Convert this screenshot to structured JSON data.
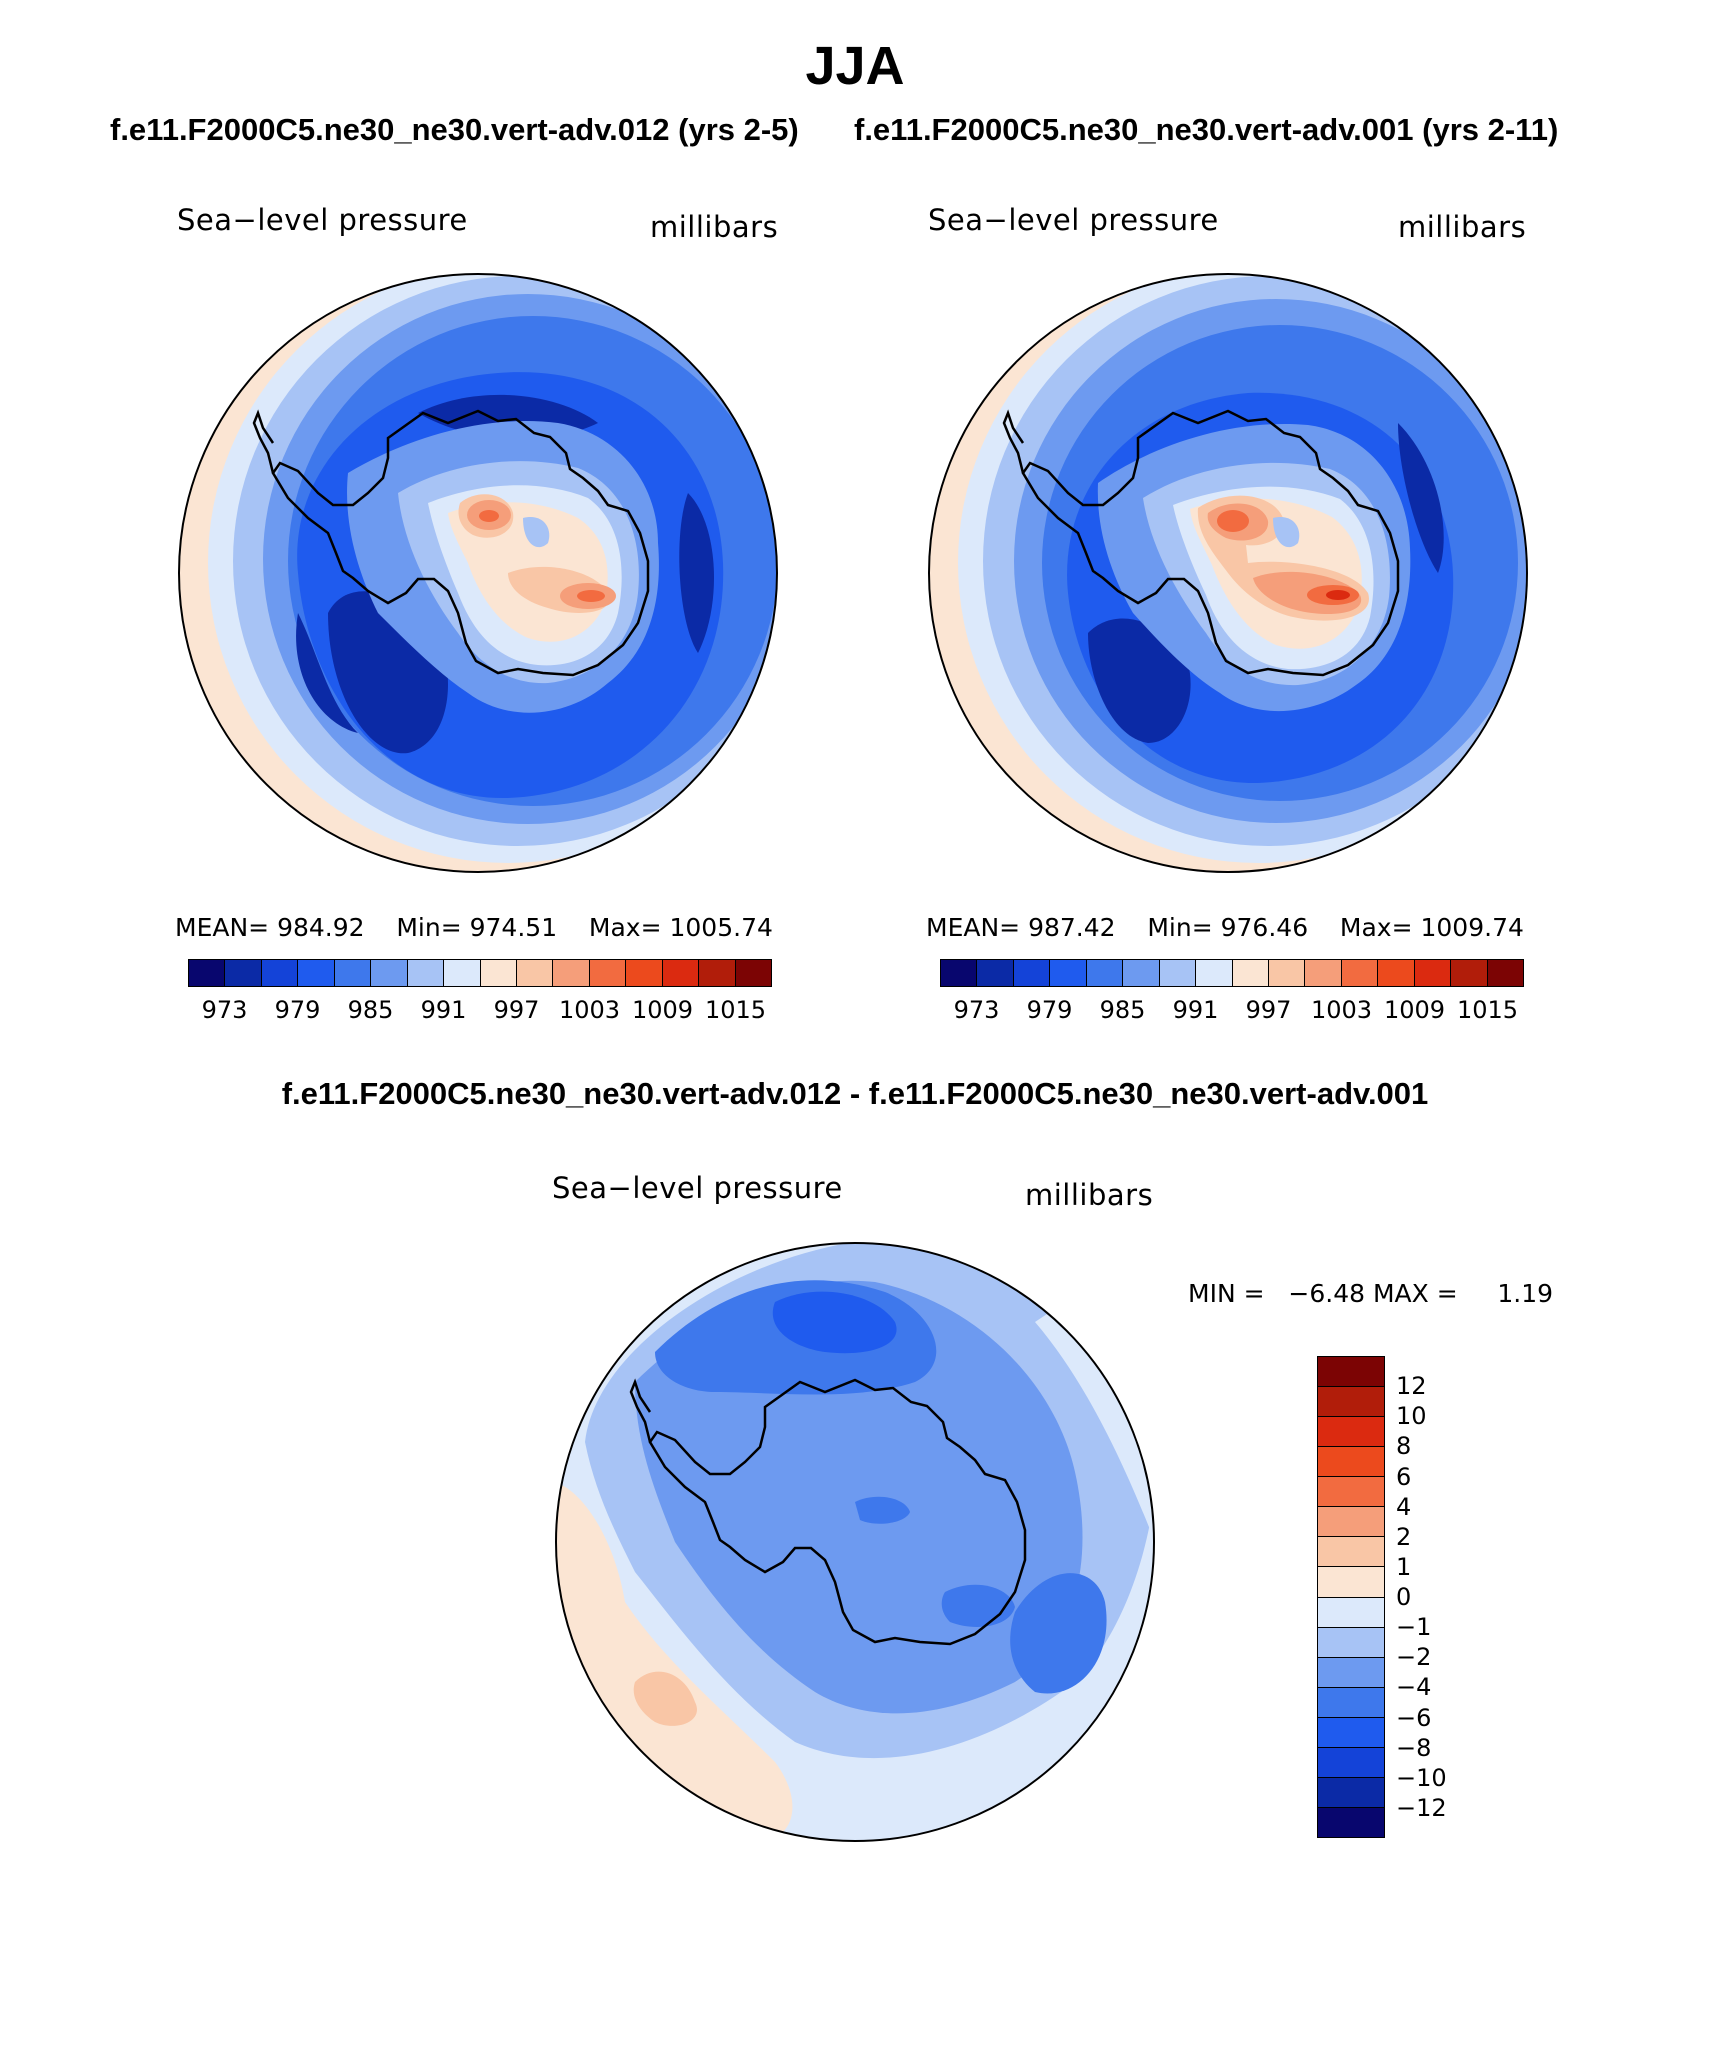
{
  "title": "JJA",
  "case1_title": "f.e11.F2000C5.ne30_ne30.vert-adv.012 (yrs 2-5)",
  "case2_title": "f.e11.F2000C5.ne30_ne30.vert-adv.001 (yrs 2-11)",
  "diff_title": "f.e11.F2000C5.ne30_ne30.vert-adv.012 - f.e11.F2000C5.ne30_ne30.vert-adv.001",
  "panels": {
    "left": {
      "variable": "Sea−level pressure",
      "units": "millibars",
      "mean_label": "MEAN=",
      "mean": "984.92",
      "min_label": "Min=",
      "min": "974.51",
      "max_label": "Max=",
      "max": "1005.74"
    },
    "right": {
      "variable": "Sea−level pressure",
      "units": "millibars",
      "mean_label": "MEAN=",
      "mean": "987.42",
      "min_label": "Min=",
      "min": "976.46",
      "max_label": "Max=",
      "max": "1009.74"
    },
    "diff": {
      "variable": "Sea−level pressure",
      "units": "millibars",
      "min_label": "MIN =",
      "min": "−6.48",
      "max_label": "MAX =",
      "max": "1.19"
    }
  },
  "abs_colorbar": {
    "ticks": [
      "973",
      "979",
      "985",
      "991",
      "997",
      "1003",
      "1009",
      "1015"
    ],
    "colors": [
      "#08066e",
      "#0b2aa6",
      "#1443d8",
      "#1f5bee",
      "#3e78ec",
      "#6d9af0",
      "#a7c3f5",
      "#dce9fb",
      "#fbe5d3",
      "#f9c6a6",
      "#f59e7a",
      "#f26b40",
      "#ec4a1d",
      "#db2a10",
      "#b11d0a",
      "#7c0404"
    ]
  },
  "diff_colorbar": {
    "ticks": [
      "12",
      "10",
      "8",
      "6",
      "4",
      "2",
      "1",
      "0",
      "−1",
      "−2",
      "−4",
      "−6",
      "−8",
      "−10",
      "−12"
    ],
    "colors": [
      "#7c0404",
      "#b11d0a",
      "#db2a10",
      "#ec4a1d",
      "#f26b40",
      "#f59e7a",
      "#f9c6a6",
      "#fbe5d3",
      "#dce9fb",
      "#a7c3f5",
      "#6d9af0",
      "#3e78ec",
      "#1f5bee",
      "#1443d8",
      "#0b2aa6",
      "#08066e"
    ]
  },
  "map_colors": {
    "deep_blue": "#0b2aa6",
    "blue": "#1f5bee",
    "mid_blue": "#3e78ec",
    "light_blue": "#6d9af0",
    "pale_blue": "#a7c3f5",
    "ice": "#dce9fb",
    "peach": "#fbe5d3",
    "salmon": "#f9c6a6",
    "orange": "#f59e7a",
    "red_orange": "#f26b40",
    "red": "#db2a10"
  }
}
